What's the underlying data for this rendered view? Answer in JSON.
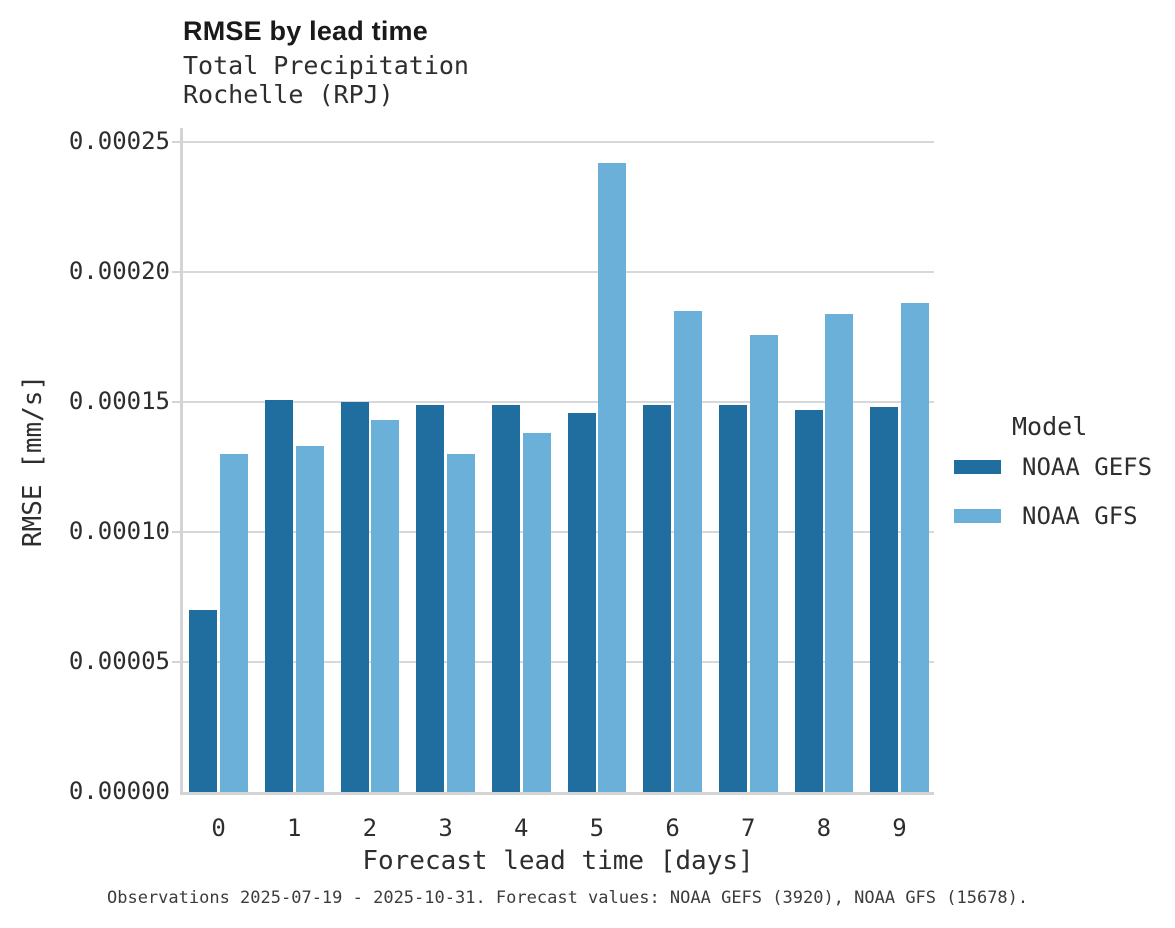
{
  "header": {
    "title": "RMSE by lead time",
    "subtitle1": "Total Precipitation",
    "subtitle2": "Rochelle (RPJ)"
  },
  "chart_data": {
    "type": "bar",
    "title": "RMSE by lead time",
    "subtitle": [
      "Total Precipitation",
      "Rochelle (RPJ)"
    ],
    "xlabel": "Forecast lead time [days]",
    "ylabel": "RMSE [mm/s]",
    "categories": [
      "0",
      "1",
      "2",
      "3",
      "4",
      "5",
      "6",
      "7",
      "8",
      "9"
    ],
    "series": [
      {
        "name": "NOAA GEFS",
        "color": "#1f6e9f",
        "values": [
          7e-05,
          0.000151,
          0.00015,
          0.000149,
          0.000149,
          0.000146,
          0.000149,
          0.000149,
          0.000147,
          0.000148
        ]
      },
      {
        "name": "NOAA GFS",
        "color": "#6bb0d8",
        "values": [
          0.00013,
          0.000133,
          0.000143,
          0.00013,
          0.000138,
          0.000242,
          0.000185,
          0.000176,
          0.000184,
          0.000188
        ]
      }
    ],
    "ylim": [
      0,
      0.00025
    ],
    "yticks": [
      0,
      5e-05,
      0.0001,
      0.00015,
      0.0002,
      0.00025
    ],
    "ytick_labels": [
      "0.00000",
      "0.00005",
      "0.00010",
      "0.00015",
      "0.00020",
      "0.00025"
    ],
    "grid": "horizontal",
    "legend_title": "Model",
    "legend_position": "right"
  },
  "caption": "Observations 2025-07-19 - 2025-10-31. Forecast values: NOAA GEFS (3920), NOAA GFS (15678)."
}
